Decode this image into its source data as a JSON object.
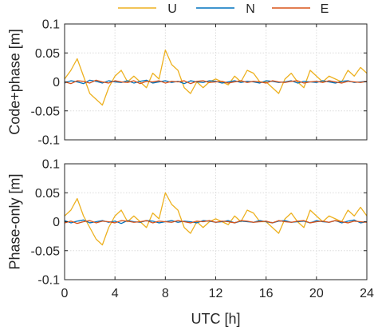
{
  "chart_data": [
    {
      "type": "line",
      "title": "",
      "xlabel": "",
      "ylabel": "Code+phase [m]",
      "xlim": [
        0,
        24
      ],
      "ylim": [
        -0.1,
        0.1
      ],
      "xticks": [
        0,
        4,
        8,
        12,
        16,
        20,
        24
      ],
      "yticks": [
        -0.1,
        -0.05,
        0,
        0.05,
        0.1
      ],
      "ytick_labels": [
        "-0.1",
        "-0.05",
        "0",
        "0.05",
        "0.1"
      ],
      "xtick_labels": [],
      "grid": true,
      "x": [
        0,
        0.5,
        1,
        1.5,
        2,
        2.5,
        3,
        3.5,
        4,
        4.5,
        5,
        5.5,
        6,
        6.5,
        7,
        7.5,
        8,
        8.5,
        9,
        9.5,
        10,
        10.5,
        11,
        11.5,
        12,
        12.5,
        13,
        13.5,
        14,
        14.5,
        15,
        15.5,
        16,
        16.5,
        17,
        17.5,
        18,
        18.5,
        19,
        19.5,
        20,
        20.5,
        21,
        21.5,
        22,
        22.5,
        23,
        23.5,
        24
      ],
      "series": [
        {
          "name": "U",
          "color": "#EDB120",
          "values": [
            0.005,
            0.02,
            0.04,
            0.01,
            -0.02,
            -0.03,
            -0.04,
            -0.01,
            0.01,
            0.02,
            0.0,
            0.01,
            0.0,
            -0.01,
            0.015,
            0.005,
            0.055,
            0.03,
            0.02,
            -0.01,
            -0.02,
            0.0,
            -0.01,
            0.0,
            0.005,
            0.0,
            -0.005,
            0.01,
            0.0,
            0.02,
            0.015,
            0.0,
            0.0,
            -0.01,
            -0.02,
            0.005,
            0.015,
            0.0,
            -0.01,
            0.02,
            0.01,
            0.0,
            0.01,
            0.005,
            0.0,
            0.02,
            0.01,
            0.025,
            0.015
          ]
        },
        {
          "name": "N",
          "color": "#0072BD",
          "values": [
            -0.002,
            0.002,
            0.0,
            -0.003,
            0.003,
            0.001,
            -0.002,
            0.002,
            0.0,
            -0.001,
            0.002,
            -0.002,
            0.001,
            0.003,
            -0.002,
            0.0,
            0.002,
            -0.001,
            0.001,
            -0.003,
            0.002,
            0.0,
            -0.001,
            0.002,
            0.001,
            -0.002,
            0.0,
            0.002,
            -0.001,
            0.001,
            0.0,
            -0.002,
            0.002,
            0.001,
            -0.001,
            0.0,
            0.002,
            -0.002,
            0.001,
            0.0,
            -0.001,
            0.002,
            0.0,
            -0.002,
            0.001,
            0.002,
            -0.001,
            0.0,
            0.001
          ]
        },
        {
          "name": "E",
          "color": "#D95319",
          "values": [
            0.0,
            -0.003,
            0.002,
            0.001,
            -0.002,
            0.003,
            0.0,
            -0.002,
            0.002,
            0.0,
            -0.001,
            0.002,
            -0.003,
            0.001,
            0.0,
            0.002,
            -0.002,
            0.001,
            0.0,
            0.002,
            -0.003,
            0.001,
            0.002,
            -0.001,
            0.0,
            0.001,
            -0.002,
            0.0,
            0.002,
            -0.001,
            0.001,
            0.0,
            -0.002,
            0.002,
            0.0,
            -0.001,
            0.001,
            0.002,
            -0.002,
            0.0,
            0.001,
            -0.001,
            0.002,
            0.0,
            -0.002,
            0.001,
            0.0,
            -0.001,
            0.001
          ]
        }
      ]
    },
    {
      "type": "line",
      "title": "",
      "xlabel": "UTC [h]",
      "ylabel": "Phase-only [m]",
      "xlim": [
        0,
        24
      ],
      "ylim": [
        -0.1,
        0.1
      ],
      "xticks": [
        0,
        4,
        8,
        12,
        16,
        20,
        24
      ],
      "yticks": [
        -0.1,
        -0.05,
        0,
        0.05,
        0.1
      ],
      "ytick_labels": [
        "-0.1",
        "-0.05",
        "0",
        "0.05",
        "0.1"
      ],
      "xtick_labels": [
        "0",
        "4",
        "8",
        "12",
        "16",
        "20",
        "24"
      ],
      "grid": true,
      "x": [
        0,
        0.5,
        1,
        1.5,
        2,
        2.5,
        3,
        3.5,
        4,
        4.5,
        5,
        5.5,
        6,
        6.5,
        7,
        7.5,
        8,
        8.5,
        9,
        9.5,
        10,
        10.5,
        11,
        11.5,
        12,
        12.5,
        13,
        13.5,
        14,
        14.5,
        15,
        15.5,
        16,
        16.5,
        17,
        17.5,
        18,
        18.5,
        19,
        19.5,
        20,
        20.5,
        21,
        21.5,
        22,
        22.5,
        23,
        23.5,
        24
      ],
      "series": [
        {
          "name": "U",
          "color": "#EDB120",
          "values": [
            0.01,
            0.02,
            0.04,
            0.01,
            -0.01,
            -0.03,
            -0.04,
            -0.01,
            0.01,
            0.02,
            0.0,
            0.01,
            0.0,
            -0.01,
            0.015,
            0.005,
            0.05,
            0.03,
            0.02,
            -0.01,
            -0.02,
            0.0,
            -0.01,
            0.0,
            0.005,
            0.0,
            -0.005,
            0.01,
            0.0,
            0.02,
            0.015,
            0.0,
            0.0,
            -0.01,
            -0.02,
            0.005,
            0.015,
            0.0,
            -0.01,
            0.02,
            0.01,
            0.0,
            0.01,
            0.005,
            0.0,
            0.02,
            0.01,
            0.025,
            0.01
          ]
        },
        {
          "name": "N",
          "color": "#0072BD",
          "values": [
            0.002,
            -0.002,
            0.001,
            0.003,
            -0.002,
            0.0,
            0.002,
            -0.001,
            0.001,
            -0.003,
            0.002,
            0.0,
            -0.001,
            0.002,
            0.001,
            -0.002,
            0.0,
            0.002,
            -0.001,
            0.001,
            0.0,
            -0.002,
            0.002,
            0.001,
            -0.001,
            0.0,
            0.002,
            -0.002,
            0.001,
            0.0,
            -0.001,
            0.002,
            0.0,
            -0.002,
            0.001,
            0.002,
            -0.001,
            0.0,
            0.001,
            -0.002,
            0.002,
            0.0,
            -0.001,
            0.002,
            -0.002,
            0.001,
            0.003,
            -0.002,
            0.0
          ]
        },
        {
          "name": "E",
          "color": "#D95319",
          "values": [
            -0.002,
            0.001,
            -0.003,
            0.0,
            0.002,
            -0.002,
            0.001,
            0.0,
            -0.002,
            0.002,
            0.001,
            -0.001,
            0.0,
            0.002,
            -0.002,
            0.001,
            0.0,
            -0.001,
            0.002,
            0.0,
            -0.002,
            0.001,
            0.0,
            0.002,
            -0.001,
            0.001,
            0.0,
            -0.002,
            0.002,
            0.001,
            -0.001,
            0.0,
            0.001,
            -0.002,
            0.002,
            0.0,
            -0.001,
            0.001,
            0.002,
            -0.002,
            0.0,
            0.001,
            -0.001,
            0.002,
            0.0,
            -0.002,
            0.001,
            0.0,
            -0.001
          ]
        }
      ]
    }
  ],
  "legend": {
    "placement": "top-center",
    "entries": [
      {
        "name": "U",
        "color": "#EDB120"
      },
      {
        "name": "N",
        "color": "#0072BD"
      },
      {
        "name": "E",
        "color": "#D95319"
      }
    ]
  }
}
